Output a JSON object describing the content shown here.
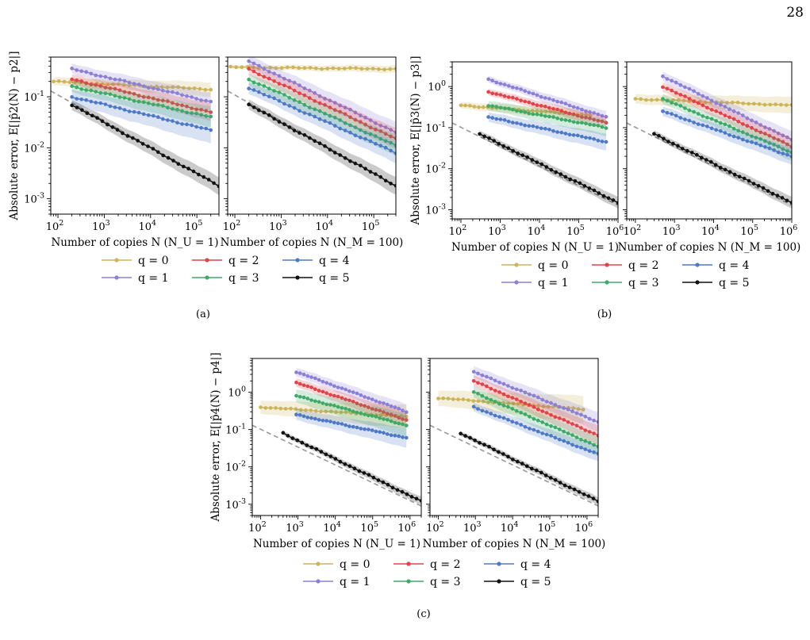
{
  "page": {
    "number": "28"
  },
  "figure": {
    "x_tick_prefix": "10",
    "y_tick_prefix": "10",
    "legend": [
      "q = 0",
      "q = 1",
      "q = 2",
      "q = 3",
      "q = 4",
      "q = 5"
    ]
  },
  "colors": {
    "q0": "#cdb458",
    "q1": "#8c7fd6",
    "q2": "#e0434a",
    "q3": "#3daa68",
    "q4": "#4e79c6",
    "q5": "#111111",
    "reference": "#999999"
  },
  "chart_data": [
    {
      "panel": "(a)",
      "subplot": "left",
      "type": "line",
      "xlabel": "Number of copies N (N_U = 1)",
      "ylabel": "Absolute error, E[|p̂2(N) − p2|]",
      "x_scale": "log",
      "y_scale": "log",
      "xlim": [
        70,
        300000
      ],
      "ylim": [
        0.0005,
        0.6
      ],
      "x_ticks": [
        2,
        3,
        4,
        5
      ],
      "y_ticks": [
        -3,
        -2,
        -1
      ],
      "reference_line": {
        "x": [
          70,
          300000
        ],
        "y": [
          0.13,
          0.0018
        ],
        "style": "dashed"
      },
      "series": [
        {
          "name": "q = 0",
          "x": [
            80,
            200000
          ],
          "y": [
            0.2,
            0.14
          ],
          "band": 1.2
        },
        {
          "name": "q = 1",
          "x": [
            200,
            200000
          ],
          "y": [
            0.35,
            0.08
          ],
          "band": 1.25
        },
        {
          "name": "q = 2",
          "x": [
            200,
            200000
          ],
          "y": [
            0.22,
            0.05
          ],
          "band": 1.25
        },
        {
          "name": "q = 3",
          "x": [
            200,
            200000
          ],
          "y": [
            0.16,
            0.04
          ],
          "band": 1.3
        },
        {
          "name": "q = 4",
          "x": [
            200,
            200000
          ],
          "y": [
            0.1,
            0.022
          ],
          "band": 1.4
        },
        {
          "name": "q = 5",
          "x": [
            200,
            300000
          ],
          "y": [
            0.07,
            0.0018
          ],
          "band": 1.25
        }
      ]
    },
    {
      "panel": "(a)",
      "subplot": "right",
      "type": "line",
      "xlabel": "Number of copies N (N_M = 100)",
      "x_scale": "log",
      "y_scale": "log",
      "xlim": [
        70,
        300000
      ],
      "ylim": [
        0.0005,
        0.6
      ],
      "x_ticks": [
        2,
        3,
        4,
        5
      ],
      "reference_line": {
        "x": [
          70,
          300000
        ],
        "y": [
          0.13,
          0.0018
        ],
        "style": "dashed"
      },
      "series": [
        {
          "name": "q = 0",
          "x": [
            80,
            300000
          ],
          "y": [
            0.38,
            0.35
          ],
          "band": 1.1
        },
        {
          "name": "q = 1",
          "x": [
            200,
            300000
          ],
          "y": [
            0.5,
            0.02
          ],
          "band": 1.3
        },
        {
          "name": "q = 2",
          "x": [
            200,
            300000
          ],
          "y": [
            0.35,
            0.015
          ],
          "band": 1.3
        },
        {
          "name": "q = 3",
          "x": [
            200,
            300000
          ],
          "y": [
            0.22,
            0.011
          ],
          "band": 1.3
        },
        {
          "name": "q = 4",
          "x": [
            200,
            300000
          ],
          "y": [
            0.15,
            0.008
          ],
          "band": 1.3
        },
        {
          "name": "q = 5",
          "x": [
            200,
            300000
          ],
          "y": [
            0.07,
            0.0018
          ],
          "band": 1.25
        }
      ]
    },
    {
      "panel": "(b)",
      "subplot": "left",
      "type": "line",
      "xlabel": "Number of copies N (N_U = 1)",
      "ylabel": "Absolute error, E[|p̂3(N) − p3|]",
      "x_scale": "log",
      "y_scale": "log",
      "xlim": [
        60,
        1000000
      ],
      "ylim": [
        0.0006,
        4
      ],
      "x_ticks": [
        2,
        3,
        4,
        5,
        6
      ],
      "y_ticks": [
        -3,
        -2,
        -1,
        0
      ],
      "reference_line": {
        "x": [
          60,
          1000000
        ],
        "y": [
          0.13,
          0.0013
        ],
        "style": "dashed"
      },
      "series": [
        {
          "name": "q = 0",
          "x": [
            100,
            200000
          ],
          "y": [
            0.35,
            0.2
          ],
          "band": 1.2
        },
        {
          "name": "q = 1",
          "x": [
            500,
            500000
          ],
          "y": [
            1.5,
            0.18
          ],
          "band": 1.2
        },
        {
          "name": "q = 2",
          "x": [
            500,
            500000
          ],
          "y": [
            0.75,
            0.13
          ],
          "band": 1.2
        },
        {
          "name": "q = 3",
          "x": [
            500,
            500000
          ],
          "y": [
            0.35,
            0.1
          ],
          "band": 1.3
        },
        {
          "name": "q = 4",
          "x": [
            500,
            500000
          ],
          "y": [
            0.18,
            0.045
          ],
          "band": 1.3
        },
        {
          "name": "q = 5",
          "x": [
            300,
            1000000
          ],
          "y": [
            0.07,
            0.0015
          ],
          "band": 1.2
        }
      ]
    },
    {
      "panel": "(b)",
      "subplot": "right",
      "type": "line",
      "xlabel": "Number of copies N (N_M = 100)",
      "x_scale": "log",
      "y_scale": "log",
      "xlim": [
        60,
        1000000
      ],
      "ylim": [
        0.0006,
        4
      ],
      "x_ticks": [
        2,
        3,
        4,
        5,
        6
      ],
      "reference_line": {
        "x": [
          60,
          1000000
        ],
        "y": [
          0.13,
          0.0013
        ],
        "style": "dashed"
      },
      "series": [
        {
          "name": "q = 0",
          "x": [
            100,
            1000000
          ],
          "y": [
            0.5,
            0.35
          ],
          "band": 1.3
        },
        {
          "name": "q = 1",
          "x": [
            500,
            1000000
          ],
          "y": [
            1.8,
            0.05
          ],
          "band": 1.3
        },
        {
          "name": "q = 2",
          "x": [
            500,
            1000000
          ],
          "y": [
            1.0,
            0.035
          ],
          "band": 1.3
        },
        {
          "name": "q = 3",
          "x": [
            500,
            1000000
          ],
          "y": [
            0.5,
            0.025
          ],
          "band": 1.3
        },
        {
          "name": "q = 4",
          "x": [
            500,
            1000000
          ],
          "y": [
            0.25,
            0.02
          ],
          "band": 1.3
        },
        {
          "name": "q = 5",
          "x": [
            300,
            1000000
          ],
          "y": [
            0.07,
            0.0015
          ],
          "band": 1.2
        }
      ]
    },
    {
      "panel": "(c)",
      "subplot": "left",
      "type": "line",
      "xlabel": "Number of copies N (N_U = 1)",
      "ylabel": "Absolute error, E[|p̂4(N) − p4|]",
      "x_scale": "log",
      "y_scale": "log",
      "xlim": [
        60,
        2000000
      ],
      "ylim": [
        0.0005,
        8
      ],
      "x_ticks": [
        2,
        3,
        4,
        5,
        6
      ],
      "y_ticks": [
        -3,
        -2,
        -1,
        0
      ],
      "reference_line": {
        "x": [
          60,
          2000000
        ],
        "y": [
          0.13,
          0.0009
        ],
        "style": "dashed"
      },
      "series": [
        {
          "name": "q = 0",
          "x": [
            100,
            800000
          ],
          "y": [
            0.4,
            0.22
          ],
          "band": 1.5
        },
        {
          "name": "q = 1",
          "x": [
            900,
            800000
          ],
          "y": [
            3.5,
            0.3
          ],
          "band": 1.3
        },
        {
          "name": "q = 2",
          "x": [
            900,
            800000
          ],
          "y": [
            1.8,
            0.18
          ],
          "band": 1.3
        },
        {
          "name": "q = 3",
          "x": [
            900,
            800000
          ],
          "y": [
            0.8,
            0.13
          ],
          "band": 1.5
        },
        {
          "name": "q = 4",
          "x": [
            900,
            800000
          ],
          "y": [
            0.25,
            0.06
          ],
          "band": 1.4
        },
        {
          "name": "q = 5",
          "x": [
            400,
            2000000
          ],
          "y": [
            0.08,
            0.0012
          ],
          "band": 1.15
        }
      ]
    },
    {
      "panel": "(c)",
      "subplot": "right",
      "type": "line",
      "xlabel": "Number of copies N (N_M = 100)",
      "x_scale": "log",
      "y_scale": "log",
      "xlim": [
        60,
        2000000
      ],
      "ylim": [
        0.0005,
        8
      ],
      "x_ticks": [
        2,
        3,
        4,
        5,
        6
      ],
      "reference_line": {
        "x": [
          60,
          2000000
        ],
        "y": [
          0.13,
          0.0009
        ],
        "style": "dashed"
      },
      "series": [
        {
          "name": "q = 0",
          "x": [
            100,
            800000
          ],
          "y": [
            0.7,
            0.35
          ],
          "band": 1.6
        },
        {
          "name": "q = 1",
          "x": [
            900,
            2000000
          ],
          "y": [
            3.5,
            0.16
          ],
          "band": 1.4
        },
        {
          "name": "q = 2",
          "x": [
            900,
            2000000
          ],
          "y": [
            2.0,
            0.07
          ],
          "band": 1.4
        },
        {
          "name": "q = 3",
          "x": [
            900,
            2000000
          ],
          "y": [
            1.0,
            0.035
          ],
          "band": 1.4
        },
        {
          "name": "q = 4",
          "x": [
            900,
            2000000
          ],
          "y": [
            0.4,
            0.022
          ],
          "band": 1.3
        },
        {
          "name": "q = 5",
          "x": [
            400,
            2000000
          ],
          "y": [
            0.08,
            0.0012
          ],
          "band": 1.15
        }
      ]
    }
  ]
}
